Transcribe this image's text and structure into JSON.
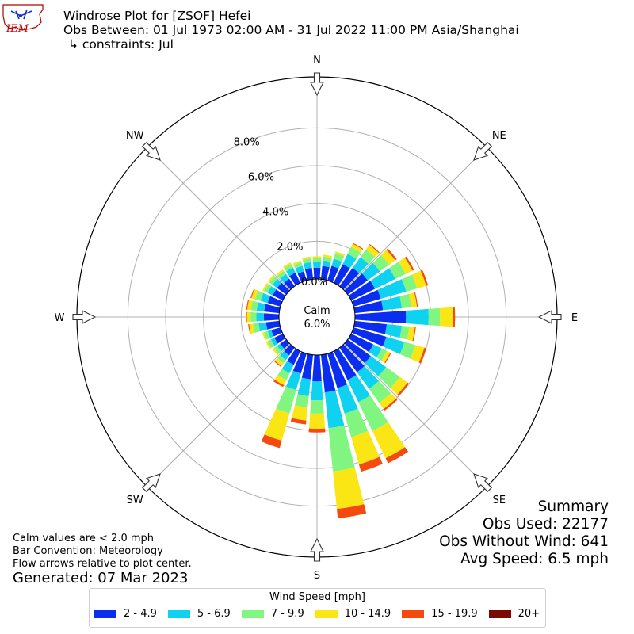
{
  "header": {
    "logo_text": "IEM",
    "title": "Windrose Plot for [ZSOF] Hefei",
    "subtitle": "Obs Between: 01 Jul 1973 02:00 AM - 31 Jul 2022 11:00 PM Asia/Shanghai",
    "constraints": "↳ constraints: Jul"
  },
  "notes": {
    "calm": "Calm values are < 2.0 mph",
    "bar": "Bar Convention: Meteorology",
    "flow": "Flow arrows relative to plot center.",
    "generated": "Generated: 07 Mar 2023"
  },
  "summary": {
    "heading": "Summary",
    "obs_used": "Obs Used: 22177",
    "obs_without_wind": "Obs Without Wind: 641",
    "avg_speed": "Avg Speed: 6.5 mph"
  },
  "legend": {
    "title": "Wind Speed [mph]",
    "items": [
      {
        "label": "2 - 4.9",
        "color": "#0a2df0"
      },
      {
        "label": "5 - 6.9",
        "color": "#0ed2f0"
      },
      {
        "label": "7 - 9.9",
        "color": "#80f580"
      },
      {
        "label": "10 - 14.9",
        "color": "#fae614"
      },
      {
        "label": "15 - 19.9",
        "color": "#f54a0f"
      },
      {
        "label": "20+",
        "color": "#7a0a00"
      }
    ]
  },
  "chart_data": {
    "type": "windrose",
    "calm_label": "Calm",
    "calm_value": "6.0%",
    "rings": [
      2.0,
      4.0,
      6.0,
      8.0
    ],
    "ring_labels": [
      "2.0%",
      "4.0%",
      "6.0%",
      "8.0%"
    ],
    "inner_label": "0.0%",
    "directions": [
      "N",
      "NE",
      "E",
      "SE",
      "S",
      "SW",
      "W",
      "NW"
    ],
    "bins": [
      "2 - 4.9",
      "5 - 6.9",
      "7 - 9.9",
      "10 - 14.9",
      "15 - 19.9",
      "20+"
    ],
    "bin_colors": [
      "#0a2df0",
      "#0ed2f0",
      "#80f580",
      "#fae614",
      "#f54a0f",
      "#7a0a00"
    ],
    "sector_degrees": [
      0,
      10,
      20,
      30,
      40,
      50,
      60,
      70,
      80,
      90,
      100,
      110,
      120,
      130,
      140,
      150,
      160,
      170,
      180,
      190,
      200,
      210,
      220,
      230,
      240,
      250,
      260,
      270,
      280,
      290,
      300,
      310,
      320,
      330,
      340,
      350
    ],
    "frequencies": [
      [
        0.6,
        0.3,
        0.2,
        0.1,
        0.0,
        0.0
      ],
      [
        0.7,
        0.3,
        0.2,
        0.1,
        0.0,
        0.0
      ],
      [
        0.8,
        0.4,
        0.3,
        0.1,
        0.0,
        0.0
      ],
      [
        1.1,
        0.6,
        0.4,
        0.2,
        0.05,
        0.0
      ],
      [
        1.2,
        0.7,
        0.5,
        0.3,
        0.05,
        0.0
      ],
      [
        1.3,
        0.8,
        0.6,
        0.4,
        0.1,
        0.0
      ],
      [
        1.4,
        1.2,
        0.6,
        0.4,
        0.1,
        0.0
      ],
      [
        1.5,
        1.4,
        0.6,
        0.5,
        0.1,
        0.0
      ],
      [
        1.5,
        1.0,
        0.5,
        0.3,
        0.05,
        0.0
      ],
      [
        2.7,
        1.2,
        0.6,
        0.7,
        0.1,
        0.0
      ],
      [
        1.7,
        0.8,
        0.4,
        0.3,
        0.05,
        0.0
      ],
      [
        1.8,
        1.0,
        0.6,
        0.5,
        0.1,
        0.0
      ],
      [
        1.3,
        0.5,
        0.3,
        0.2,
        0.05,
        0.0
      ],
      [
        1.5,
        1.0,
        0.9,
        0.5,
        0.1,
        0.0
      ],
      [
        1.6,
        1.1,
        0.9,
        0.4,
        0.1,
        0.0
      ],
      [
        1.7,
        1.3,
        1.7,
        1.6,
        0.3,
        0.0
      ],
      [
        1.9,
        1.4,
        1.3,
        1.5,
        0.4,
        0.0
      ],
      [
        2.0,
        1.9,
        2.3,
        2.0,
        0.5,
        0.0
      ],
      [
        1.4,
        1.0,
        0.7,
        0.8,
        0.2,
        0.0
      ],
      [
        1.3,
        0.9,
        0.6,
        0.7,
        0.2,
        0.0
      ],
      [
        1.1,
        0.9,
        1.3,
        1.5,
        0.4,
        0.0
      ],
      [
        0.8,
        0.5,
        0.4,
        0.3,
        0.1,
        0.0
      ],
      [
        0.5,
        0.3,
        0.2,
        0.2,
        0.05,
        0.0
      ],
      [
        0.4,
        0.2,
        0.2,
        0.1,
        0.0,
        0.0
      ],
      [
        0.5,
        0.2,
        0.2,
        0.1,
        0.0,
        0.0
      ],
      [
        0.5,
        0.2,
        0.2,
        0.1,
        0.0,
        0.0
      ],
      [
        0.7,
        0.4,
        0.3,
        0.2,
        0.05,
        0.0
      ],
      [
        0.8,
        0.4,
        0.3,
        0.2,
        0.05,
        0.0
      ],
      [
        0.8,
        0.4,
        0.3,
        0.2,
        0.05,
        0.0
      ],
      [
        0.7,
        0.4,
        0.3,
        0.2,
        0.05,
        0.0
      ],
      [
        0.6,
        0.3,
        0.2,
        0.1,
        0.0,
        0.0
      ],
      [
        0.6,
        0.3,
        0.2,
        0.1,
        0.0,
        0.0
      ],
      [
        0.5,
        0.3,
        0.2,
        0.1,
        0.0,
        0.0
      ],
      [
        0.6,
        0.3,
        0.2,
        0.1,
        0.0,
        0.0
      ],
      [
        0.5,
        0.3,
        0.2,
        0.1,
        0.0,
        0.0
      ],
      [
        0.6,
        0.3,
        0.2,
        0.1,
        0.0,
        0.0
      ]
    ],
    "rmax": 10.7,
    "grid": true
  }
}
